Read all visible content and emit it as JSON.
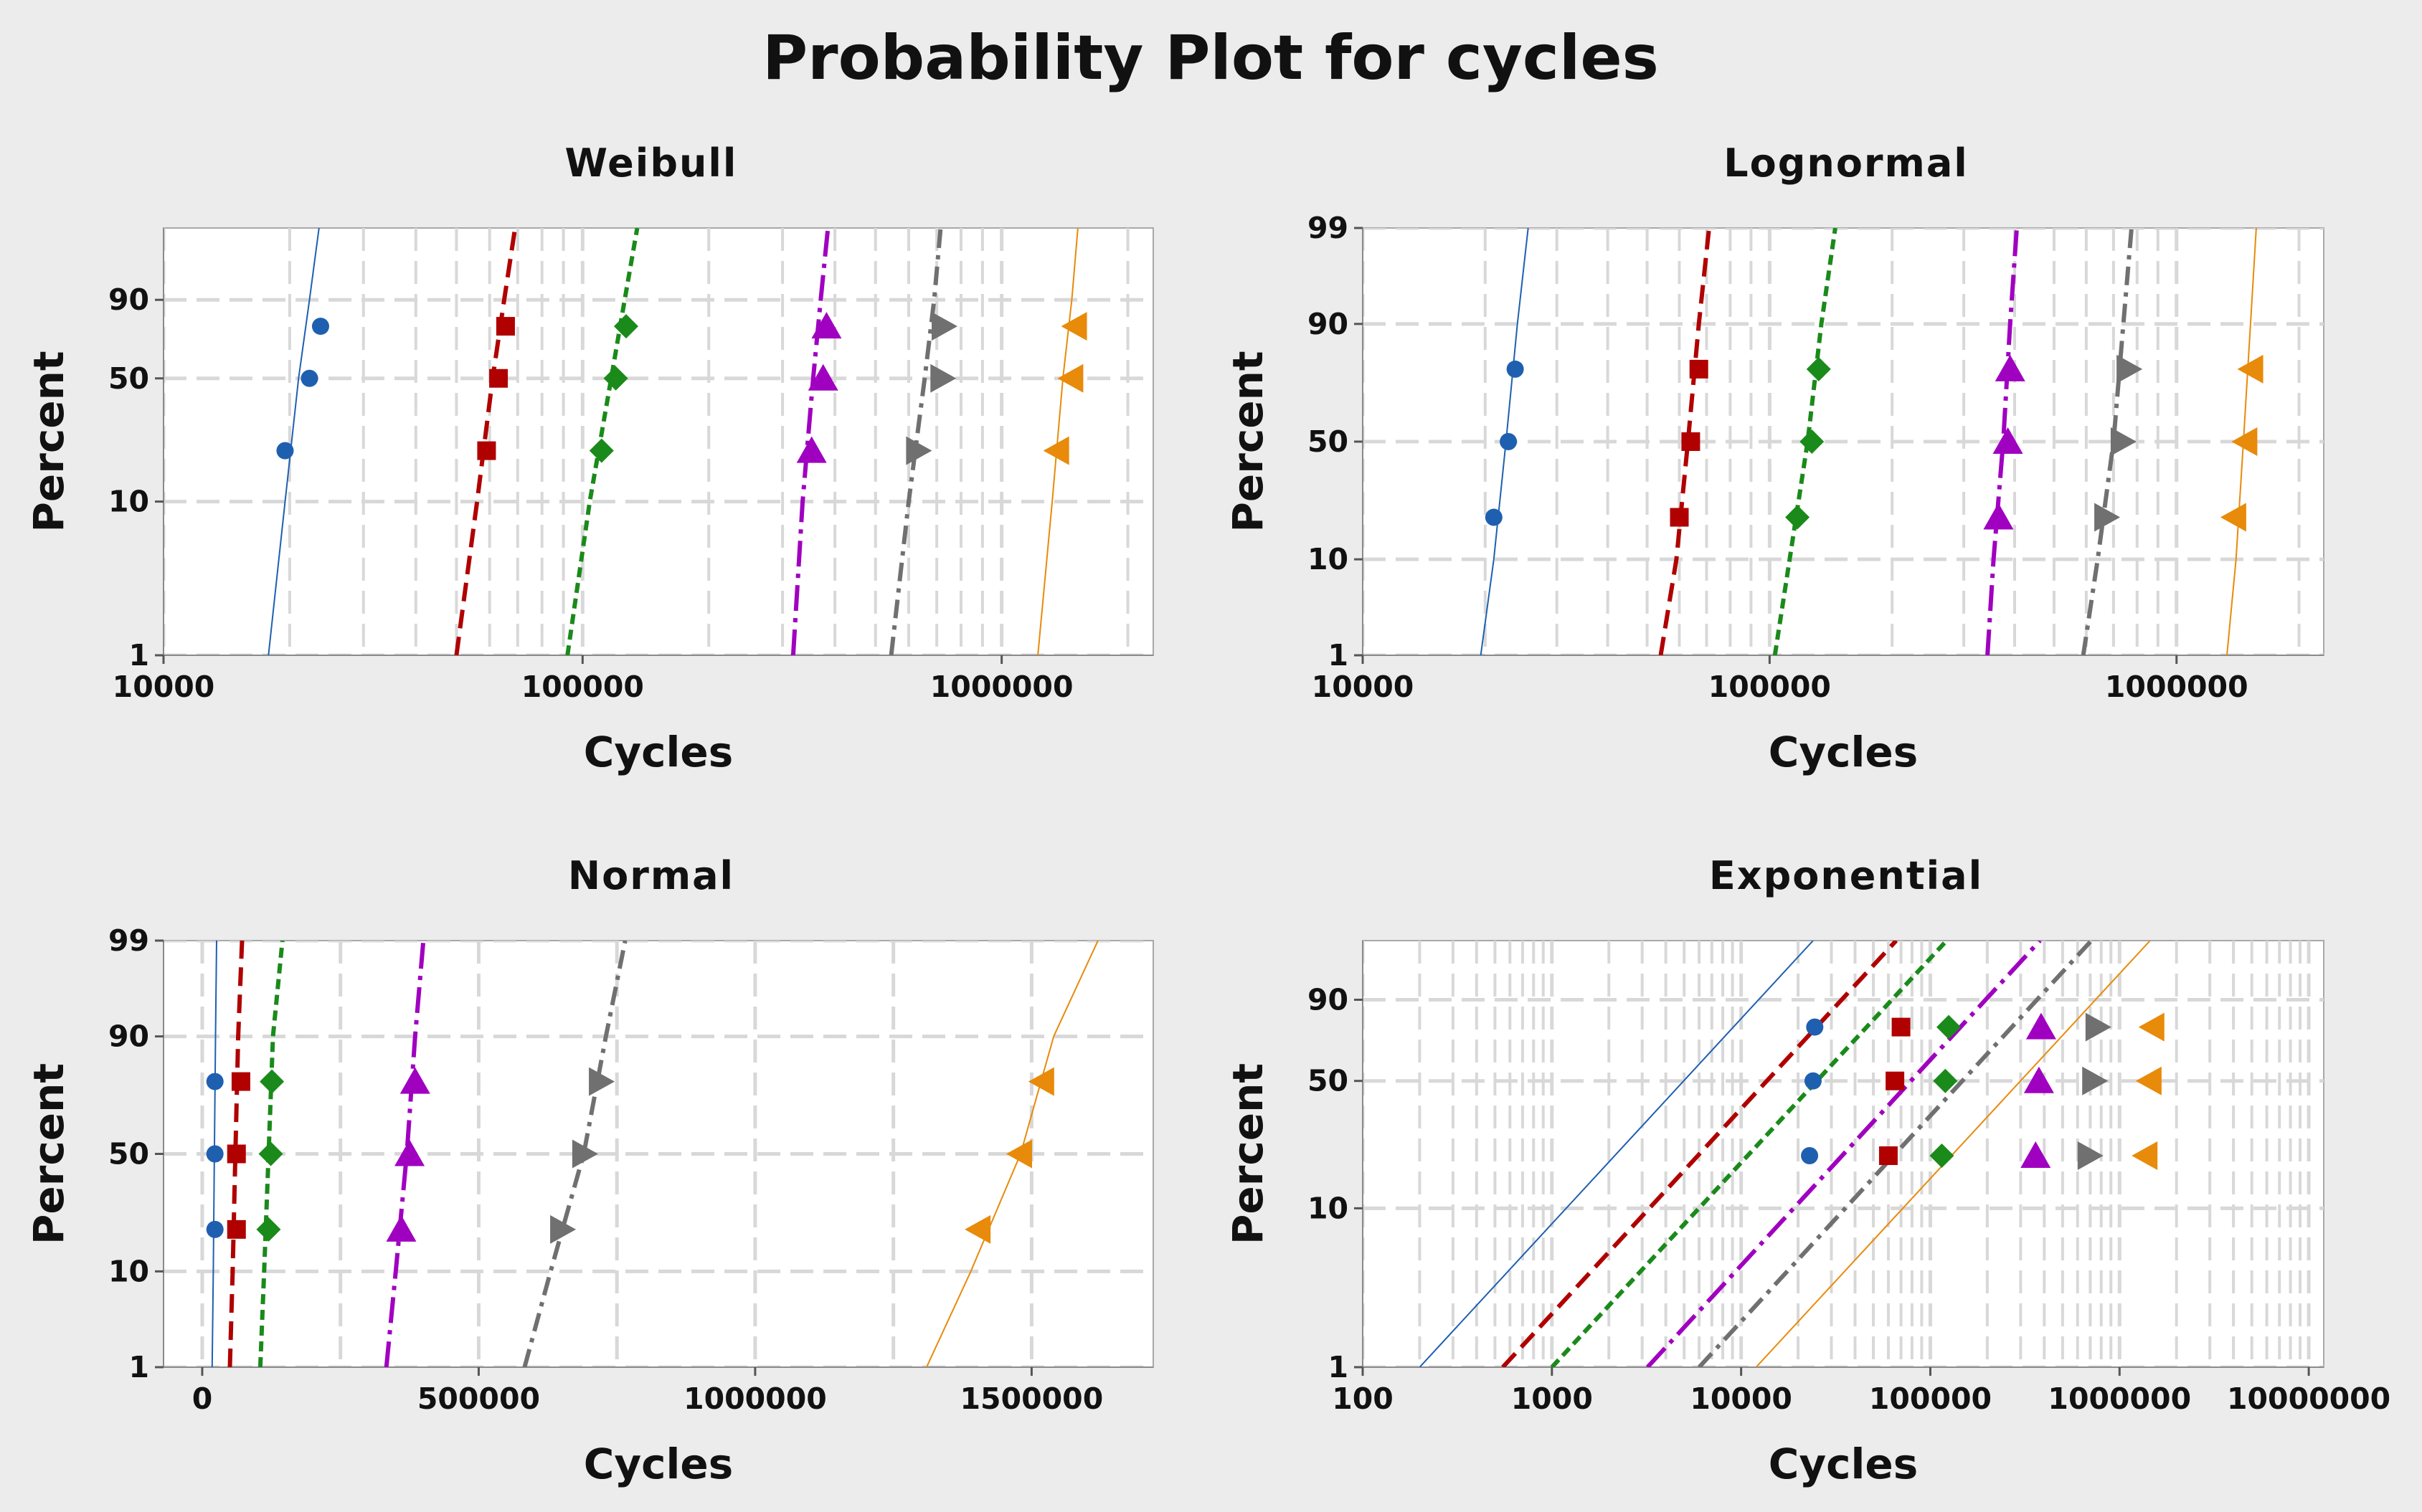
{
  "title": "Probability Plot for cycles",
  "chart_data": [
    {
      "type": "scatter",
      "title": "Weibull",
      "xlabel": "Cycles",
      "ylabel": "Percent",
      "x_scale": "log",
      "y_scale": "weibull",
      "xlim": [
        10000,
        2300000
      ],
      "ylim": [
        1,
        99.9
      ],
      "x_ticks": [
        "10000",
        "100000",
        "1000000"
      ],
      "y_ticks": [
        "1",
        "10",
        "50",
        "90"
      ],
      "grid": true,
      "marker_y": [
        20.5,
        50,
        78.5
      ],
      "series": [
        {
          "marker": "circle",
          "color": "#1f5fb0",
          "dash": "",
          "width": 2,
          "line": [
            [
              17800,
              1
            ],
            [
              19500,
              10
            ],
            [
              21000,
              50
            ],
            [
              22300,
              90
            ],
            [
              23500,
              99.9
            ]
          ],
          "x": [
            19500,
            22300,
            23700
          ]
        },
        {
          "marker": "square",
          "color": "#b00000",
          "dash": "26 12",
          "width": 6,
          "line": [
            [
              50000,
              1
            ],
            [
              56000,
              10
            ],
            [
              61000,
              50
            ],
            [
              65000,
              90
            ],
            [
              69000,
              99.9
            ]
          ],
          "x": [
            59000,
            63000,
            65500
          ]
        },
        {
          "marker": "diamond",
          "color": "#1a8a1a",
          "dash": "14 8",
          "width": 6,
          "line": [
            [
              92000,
              1
            ],
            [
              104000,
              10
            ],
            [
              117000,
              50
            ],
            [
              126000,
              90
            ],
            [
              135000,
              99.9
            ]
          ],
          "x": [
            111000,
            120000,
            127000
          ]
        },
        {
          "marker": "triangle-up",
          "color": "#a000c0",
          "dash": "36 10 6 10",
          "width": 6,
          "line": [
            [
              318000,
              1
            ],
            [
              335000,
              10
            ],
            [
              355000,
              50
            ],
            [
              370000,
              90
            ],
            [
              385000,
              99.9
            ]
          ],
          "x": [
            352000,
            375000,
            382000
          ]
        },
        {
          "marker": "triangle-right",
          "color": "#707070",
          "dash": "26 10 6 10",
          "width": 6,
          "line": [
            [
              545000,
              1
            ],
            [
              600000,
              10
            ],
            [
              655000,
              50
            ],
            [
              690000,
              90
            ],
            [
              715000,
              99.9
            ]
          ],
          "x": [
            630000,
            720000,
            725000
          ]
        },
        {
          "marker": "triangle-left",
          "color": "#e88a0a",
          "dash": "",
          "width": 2,
          "line": [
            [
              1220000,
              1
            ],
            [
              1320000,
              10
            ],
            [
              1400000,
              50
            ],
            [
              1470000,
              90
            ],
            [
              1520000,
              99.9
            ]
          ],
          "x": [
            1360000,
            1470000,
            1500000
          ]
        }
      ]
    },
    {
      "type": "scatter",
      "title": "Lognormal",
      "xlabel": "Cycles",
      "ylabel": "Percent",
      "x_scale": "log",
      "y_scale": "normal-probability",
      "xlim": [
        10000,
        2300000
      ],
      "ylim": [
        1,
        99
      ],
      "x_ticks": [
        "10000",
        "100000",
        "1000000"
      ],
      "y_ticks": [
        "1",
        "10",
        "50",
        "90",
        "99"
      ],
      "grid": true,
      "marker_y": [
        20.5,
        50,
        78.5
      ],
      "series": [
        {
          "marker": "circle",
          "color": "#1f5fb0",
          "dash": "",
          "width": 2,
          "line": [
            [
              19500,
              1
            ],
            [
              21000,
              10
            ],
            [
              22500,
              50
            ],
            [
              24000,
              90
            ],
            [
              25500,
              99
            ]
          ],
          "x": [
            21000,
            22800,
            23700
          ]
        },
        {
          "marker": "square",
          "color": "#b00000",
          "dash": "26 12",
          "width": 6,
          "line": [
            [
              54000,
              1
            ],
            [
              59000,
              10
            ],
            [
              63000,
              50
            ],
            [
              67000,
              90
            ],
            [
              71000,
              99
            ]
          ],
          "x": [
            60000,
            64000,
            67000
          ]
        },
        {
          "marker": "diamond",
          "color": "#1a8a1a",
          "dash": "14 8",
          "width": 6,
          "line": [
            [
              103000,
              1
            ],
            [
              112000,
              10
            ],
            [
              124000,
              50
            ],
            [
              134000,
              90
            ],
            [
              145000,
              99
            ]
          ],
          "x": [
            117000,
            127000,
            132000
          ]
        },
        {
          "marker": "triangle-up",
          "color": "#a000c0",
          "dash": "36 10 6 10",
          "width": 6,
          "line": [
            [
              343000,
              1
            ],
            [
              355000,
              10
            ],
            [
              375000,
              50
            ],
            [
              390000,
              90
            ],
            [
              405000,
              99
            ]
          ],
          "x": [
            365000,
            385000,
            390000
          ]
        },
        {
          "marker": "triangle-right",
          "color": "#707070",
          "dash": "26 10 6 10",
          "width": 6,
          "line": [
            [
              590000,
              1
            ],
            [
              640000,
              10
            ],
            [
              700000,
              50
            ],
            [
              740000,
              90
            ],
            [
              775000,
              99
            ]
          ],
          "x": [
            670000,
            735000,
            760000
          ]
        },
        {
          "marker": "triangle-left",
          "color": "#e88a0a",
          "dash": "",
          "width": 2,
          "line": [
            [
              1330000,
              1
            ],
            [
              1400000,
              10
            ],
            [
              1460000,
              50
            ],
            [
              1520000,
              90
            ],
            [
              1570000,
              99
            ]
          ],
          "x": [
            1390000,
            1480000,
            1530000
          ]
        }
      ]
    },
    {
      "type": "scatter",
      "title": "Normal",
      "xlabel": "Cycles",
      "ylabel": "Percent",
      "x_scale": "linear",
      "y_scale": "normal-probability",
      "xlim": [
        -70000,
        1720000
      ],
      "ylim": [
        1,
        99
      ],
      "x_ticks": [
        "0",
        "500000",
        "1000000",
        "1500000"
      ],
      "y_ticks": [
        "1",
        "10",
        "50",
        "90",
        "99"
      ],
      "grid": true,
      "marker_y": [
        20.5,
        50,
        78.5
      ],
      "series": [
        {
          "marker": "circle",
          "color": "#1f5fb0",
          "dash": "",
          "width": 2,
          "line": [
            [
              18000,
              1
            ],
            [
              20000,
              10
            ],
            [
              22000,
              50
            ],
            [
              24000,
              90
            ],
            [
              26000,
              99
            ]
          ],
          "x": [
            23000,
            23000,
            23000
          ]
        },
        {
          "marker": "square",
          "color": "#b00000",
          "dash": "26 12",
          "width": 6,
          "line": [
            [
              50000,
              1
            ],
            [
              55000,
              10
            ],
            [
              60000,
              50
            ],
            [
              65000,
              90
            ],
            [
              72000,
              99
            ]
          ],
          "x": [
            62000,
            62000,
            70000
          ]
        },
        {
          "marker": "diamond",
          "color": "#1a8a1a",
          "dash": "14 8",
          "width": 6,
          "line": [
            [
              105000,
              1
            ],
            [
              112000,
              10
            ],
            [
              120000,
              50
            ],
            [
              128000,
              90
            ],
            [
              145000,
              99
            ]
          ],
          "x": [
            120000,
            124000,
            126000
          ]
        },
        {
          "marker": "triangle-up",
          "color": "#a000c0",
          "dash": "36 10 6 10",
          "width": 6,
          "line": [
            [
              333000,
              1
            ],
            [
              350000,
              10
            ],
            [
              370000,
              50
            ],
            [
              385000,
              90
            ],
            [
              400000,
              99
            ]
          ],
          "x": [
            360000,
            375000,
            385000
          ]
        },
        {
          "marker": "triangle-right",
          "color": "#707070",
          "dash": "26 10 6 10",
          "width": 6,
          "line": [
            [
              583000,
              1
            ],
            [
              630000,
              10
            ],
            [
              690000,
              50
            ],
            [
              730000,
              90
            ],
            [
              765000,
              99
            ]
          ],
          "x": [
            650000,
            690000,
            720000
          ]
        },
        {
          "marker": "triangle-left",
          "color": "#e88a0a",
          "dash": "",
          "width": 2,
          "line": [
            [
              1310000,
              1
            ],
            [
              1390000,
              10
            ],
            [
              1480000,
              50
            ],
            [
              1540000,
              90
            ],
            [
              1620000,
              99
            ]
          ],
          "x": [
            1405000,
            1480000,
            1520000
          ]
        }
      ]
    },
    {
      "type": "scatter",
      "title": "Exponential",
      "xlabel": "Cycles",
      "ylabel": "Percent",
      "x_scale": "log",
      "y_scale": "exponential-probability",
      "xlim": [
        100,
        12000000
      ],
      "ylim": [
        1,
        99.6
      ],
      "x_ticks": [
        "100",
        "1000",
        "10000",
        "100000",
        "1000000",
        "10000000"
      ],
      "y_ticks": [
        "1",
        "10",
        "50",
        "90"
      ],
      "grid": true,
      "marker_y": [
        20.5,
        50,
        78.5
      ],
      "series": [
        {
          "marker": "circle",
          "color": "#1f5fb0",
          "dash": "",
          "width": 2,
          "line": [
            [
              200,
              1
            ],
            [
              24000,
              99.6
            ]
          ],
          "x": [
            23000,
            24000,
            24500
          ]
        },
        {
          "marker": "square",
          "color": "#b00000",
          "dash": "26 12",
          "width": 6,
          "line": [
            [
              550,
              1
            ],
            [
              66000,
              99.6
            ]
          ],
          "x": [
            60000,
            65000,
            70000
          ]
        },
        {
          "marker": "diamond",
          "color": "#1a8a1a",
          "dash": "14 8",
          "width": 6,
          "line": [
            [
              1000,
              1
            ],
            [
              122000,
              99.6
            ]
          ],
          "x": [
            115000,
            120000,
            125000
          ]
        },
        {
          "marker": "triangle-up",
          "color": "#a000c0",
          "dash": "36 10 6 10",
          "width": 6,
          "line": [
            [
              3200,
              1
            ],
            [
              380000,
              99.6
            ]
          ],
          "x": [
            360000,
            375000,
            385000
          ]
        },
        {
          "marker": "triangle-right",
          "color": "#707070",
          "dash": "26 10 6 10",
          "width": 6,
          "line": [
            [
              6000,
              1
            ],
            [
              710000,
              99.6
            ]
          ],
          "x": [
            690000,
            730000,
            760000
          ]
        },
        {
          "marker": "triangle-left",
          "color": "#e88a0a",
          "dash": "",
          "width": 2,
          "line": [
            [
              12000,
              1
            ],
            [
              1450000,
              99.6
            ]
          ],
          "x": [
            1380000,
            1450000,
            1500000
          ]
        }
      ]
    }
  ]
}
